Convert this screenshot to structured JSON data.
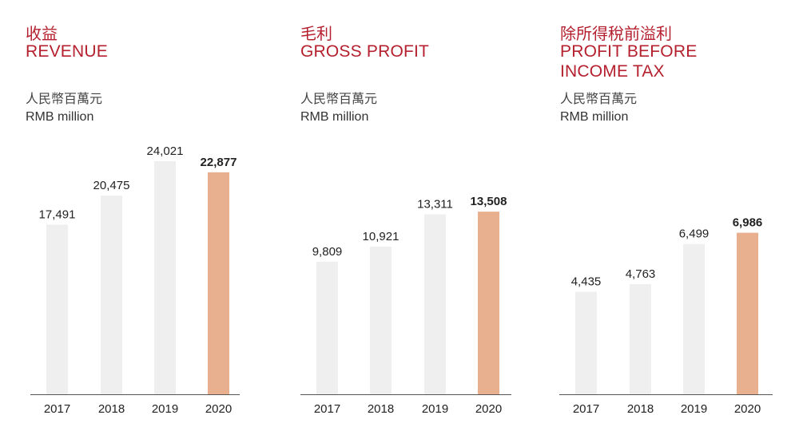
{
  "charts": [
    {
      "title_cn": "收益",
      "title_en": "REVENUE",
      "unit_cn": "人民幣百萬元",
      "unit_en": "RMB million"
    },
    {
      "title_cn": "毛利",
      "title_en": "GROSS PROFIT",
      "unit_cn": "人民幣百萬元",
      "unit_en": "RMB million"
    },
    {
      "title_cn": "除所得稅前溢利",
      "title_en_line1": "PROFIT BEFORE",
      "title_en_line2": "INCOME TAX",
      "unit_cn": "人民幣百萬元",
      "unit_en": "RMB million"
    }
  ],
  "colors": {
    "title": "#b5202e",
    "bar": "#efefef",
    "highlight_bar": "#e9b090",
    "axis": "#555555"
  },
  "chart_data": [
    {
      "type": "bar",
      "title": "REVENUE",
      "categories": [
        "2017",
        "2018",
        "2019",
        "2020"
      ],
      "values": [
        17491,
        20475,
        24021,
        22877
      ],
      "value_labels": [
        "17,491",
        "20,475",
        "24,021",
        "22,877"
      ],
      "highlight_index": 3,
      "ylim": [
        0,
        25500
      ]
    },
    {
      "type": "bar",
      "title": "GROSS PROFIT",
      "categories": [
        "2017",
        "2018",
        "2019",
        "2020"
      ],
      "values": [
        9809,
        10921,
        13311,
        13508
      ],
      "value_labels": [
        "9,809",
        "10,921",
        "13,311",
        "13,508"
      ],
      "highlight_index": 3,
      "ylim": [
        0,
        18300
      ]
    },
    {
      "type": "bar",
      "title": "PROFIT BEFORE INCOME TAX",
      "categories": [
        "2017",
        "2018",
        "2019",
        "2020"
      ],
      "values": [
        4435,
        4763,
        6499,
        6986
      ],
      "value_labels": [
        "4,435",
        "4,763",
        "6,499",
        "6,986"
      ],
      "highlight_index": 3,
      "ylim": [
        0,
        10700
      ]
    }
  ]
}
